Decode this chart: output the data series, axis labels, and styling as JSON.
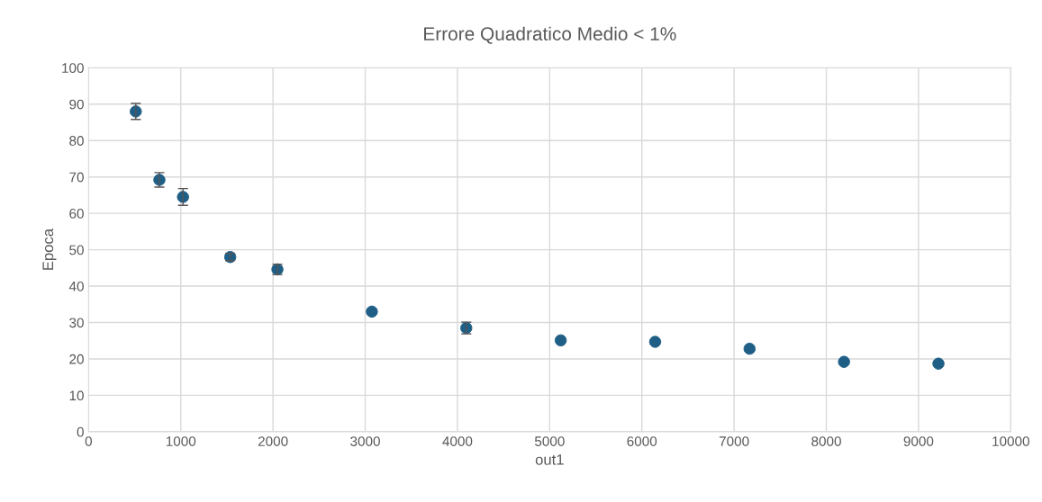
{
  "chart_data": {
    "type": "scatter",
    "title": "Errore Quadratico Medio < 1%",
    "xlabel": "out1",
    "ylabel": "Epoca",
    "x": [
      512,
      768,
      1024,
      1536,
      2048,
      3072,
      4096,
      5120,
      6144,
      7168,
      8192,
      9216
    ],
    "series": [
      {
        "color": "#1f5f86",
        "values": [
          88.0,
          69.2,
          64.5,
          48.0,
          44.6,
          33.0,
          28.5,
          25.1,
          24.7,
          22.8,
          19.2,
          18.7
        ],
        "errors": [
          2.2,
          2.0,
          2.3,
          1.0,
          1.4,
          null,
          1.6,
          null,
          null,
          null,
          null,
          null
        ]
      }
    ],
    "xlim": [
      0,
      10000
    ],
    "xticks": [
      0,
      1000,
      2000,
      3000,
      4000,
      5000,
      6000,
      7000,
      8000,
      9000,
      10000
    ],
    "ylim": [
      0,
      100
    ],
    "yticks": [
      0,
      10,
      20,
      30,
      40,
      50,
      60,
      70,
      80,
      90,
      100
    ],
    "grid": true,
    "marker": "circle",
    "legend": false
  }
}
